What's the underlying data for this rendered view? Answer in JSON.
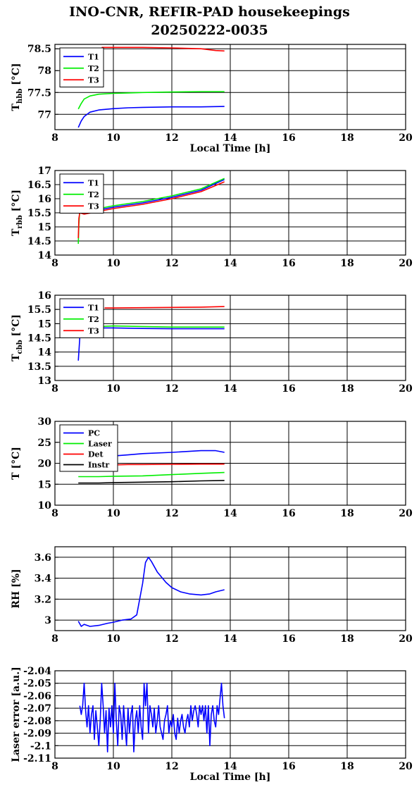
{
  "title_line1": "INO-CNR, REFIR-PAD housekeepings",
  "title_line2": "20250222-0035",
  "colors": {
    "blue": "#0000ff",
    "green": "#00ee00",
    "red": "#ff0000",
    "black": "#000000"
  },
  "chart_data": [
    {
      "type": "line",
      "ylabel": "T_hbb [°C]",
      "xlabel": "Local Time [h]",
      "xlim": [
        8,
        20
      ],
      "xticks": [
        8,
        10,
        12,
        14,
        16,
        18,
        20
      ],
      "ylim": [
        76.65,
        78.6
      ],
      "yticks": [
        77,
        77.5,
        78,
        78.5
      ],
      "ytick_labels": [
        "77",
        "77.5",
        "78",
        "78.5"
      ],
      "grid": true,
      "legend": "top-left",
      "series": [
        {
          "name": "T1",
          "color": "blue",
          "x": [
            8.8,
            8.9,
            9.0,
            9.2,
            9.5,
            10.0,
            10.5,
            11.0,
            12.0,
            13.0,
            13.8
          ],
          "y": [
            76.7,
            76.85,
            76.95,
            77.05,
            77.1,
            77.13,
            77.15,
            77.16,
            77.17,
            77.17,
            77.18
          ]
        },
        {
          "name": "T2",
          "color": "green",
          "x": [
            8.8,
            8.9,
            9.0,
            9.2,
            9.5,
            10.0,
            10.5,
            11.0,
            12.0,
            13.0,
            13.8
          ],
          "y": [
            77.12,
            77.25,
            77.35,
            77.42,
            77.46,
            77.48,
            77.49,
            77.5,
            77.51,
            77.52,
            77.52
          ]
        },
        {
          "name": "T3",
          "color": "red",
          "x": [
            9.6,
            10.0,
            11.0,
            12.0,
            13.0,
            13.5,
            13.8
          ],
          "y": [
            78.53,
            78.53,
            78.53,
            78.52,
            78.5,
            78.46,
            78.45
          ]
        }
      ]
    },
    {
      "type": "line",
      "ylabel": "T_rbb [°C]",
      "xlabel": "",
      "xlim": [
        8,
        20
      ],
      "xticks": [
        8,
        10,
        12,
        14,
        16,
        18,
        20
      ],
      "ylim": [
        14,
        17
      ],
      "yticks": [
        14,
        14.5,
        15,
        15.5,
        16,
        16.5,
        17
      ],
      "ytick_labels": [
        "14",
        "14.5",
        "15",
        "15.5",
        "16",
        "16.5",
        "17"
      ],
      "grid": true,
      "legend": "top-left",
      "series": [
        {
          "name": "T1",
          "color": "blue",
          "x": [
            8.8,
            8.85,
            9.0,
            9.5,
            10.0,
            11.0,
            12.0,
            13.0,
            13.8
          ],
          "y": [
            15.5,
            15.6,
            15.55,
            15.6,
            15.7,
            15.85,
            16.05,
            16.3,
            16.68
          ]
        },
        {
          "name": "T2",
          "color": "green",
          "x": [
            8.8,
            8.82,
            8.85,
            9.0,
            9.5,
            10.0,
            11.0,
            12.0,
            13.0,
            13.8
          ],
          "y": [
            14.4,
            15.1,
            15.6,
            15.6,
            15.65,
            15.75,
            15.9,
            16.1,
            16.35,
            16.72
          ]
        },
        {
          "name": "T3",
          "color": "red",
          "x": [
            8.8,
            8.82,
            8.85,
            9.0,
            9.5,
            10.0,
            11.0,
            12.0,
            13.0,
            13.8
          ],
          "y": [
            14.6,
            15.3,
            15.5,
            15.45,
            15.55,
            15.65,
            15.8,
            16.0,
            16.25,
            16.6
          ]
        }
      ]
    },
    {
      "type": "line",
      "ylabel": "T_cbb [°C]",
      "xlabel": "",
      "xlim": [
        8,
        20
      ],
      "xticks": [
        8,
        10,
        12,
        14,
        16,
        18,
        20
      ],
      "ylim": [
        13,
        16
      ],
      "yticks": [
        13,
        13.5,
        14,
        14.5,
        15,
        15.5,
        16
      ],
      "ytick_labels": [
        "13",
        "13.5",
        "14",
        "14.5",
        "15",
        "15.5",
        "16"
      ],
      "grid": true,
      "legend": "top-left",
      "series": [
        {
          "name": "T1",
          "color": "blue",
          "x": [
            8.8,
            8.85,
            8.9,
            9.0,
            9.5,
            10.0,
            11.0,
            12.0,
            13.0,
            13.8
          ],
          "y": [
            13.7,
            14.5,
            14.8,
            14.85,
            14.85,
            14.85,
            14.83,
            14.82,
            14.82,
            14.82
          ]
        },
        {
          "name": "T2",
          "color": "green",
          "x": [
            9.0,
            9.5,
            10.0,
            11.0,
            12.0,
            13.0,
            13.8
          ],
          "y": [
            14.92,
            14.9,
            14.92,
            14.9,
            14.88,
            14.88,
            14.88
          ]
        },
        {
          "name": "T3",
          "color": "red",
          "x": [
            9.7,
            10.0,
            11.0,
            12.0,
            13.0,
            13.8
          ],
          "y": [
            15.55,
            15.55,
            15.56,
            15.57,
            15.58,
            15.6
          ]
        }
      ]
    },
    {
      "type": "line",
      "ylabel": "T [°C]",
      "xlabel": "",
      "xlim": [
        8,
        20
      ],
      "xticks": [
        8,
        10,
        12,
        14,
        16,
        18,
        20
      ],
      "ylim": [
        10,
        30
      ],
      "yticks": [
        10,
        15,
        20,
        25,
        30
      ],
      "ytick_labels": [
        "10",
        "15",
        "20",
        "25",
        "30"
      ],
      "grid": true,
      "legend": "top-left",
      "series": [
        {
          "name": "PC",
          "color": "blue",
          "x": [
            9.9,
            10.5,
            11.0,
            12.0,
            13.0,
            13.5,
            13.8
          ],
          "y": [
            21.7,
            22.0,
            22.3,
            22.6,
            23.0,
            23.0,
            22.6
          ]
        },
        {
          "name": "Laser",
          "color": "green",
          "x": [
            8.8,
            9.5,
            10.0,
            11.0,
            12.0,
            13.0,
            13.8
          ],
          "y": [
            16.8,
            16.8,
            16.9,
            17.0,
            17.3,
            17.6,
            17.8
          ]
        },
        {
          "name": "Det",
          "color": "red",
          "x": [
            9.9,
            10.5,
            11.0,
            12.0,
            13.0,
            13.8
          ],
          "y": [
            19.6,
            19.7,
            19.7,
            19.75,
            19.8,
            19.8
          ]
        },
        {
          "name": "Instr",
          "color": "black",
          "x": [
            8.8,
            9.5,
            10.0,
            11.0,
            12.0,
            13.0,
            13.8
          ],
          "y": [
            15.3,
            15.3,
            15.4,
            15.5,
            15.6,
            15.8,
            15.9
          ]
        }
      ]
    },
    {
      "type": "line",
      "ylabel": "RH [%]",
      "xlabel": "",
      "xlim": [
        8,
        20
      ],
      "xticks": [
        8,
        10,
        12,
        14,
        16,
        18,
        20
      ],
      "ylim": [
        2.9,
        3.7
      ],
      "yticks": [
        3,
        3.2,
        3.4,
        3.6
      ],
      "ytick_labels": [
        "3",
        "3.2",
        "3.4",
        "3.6"
      ],
      "grid": true,
      "legend": "none",
      "series": [
        {
          "name": "",
          "color": "blue",
          "x": [
            8.8,
            8.9,
            9.0,
            9.2,
            9.5,
            9.8,
            10.0,
            10.3,
            10.6,
            10.8,
            11.0,
            11.1,
            11.2,
            11.3,
            11.5,
            11.8,
            12.0,
            12.3,
            12.6,
            13.0,
            13.3,
            13.5,
            13.8
          ],
          "y": [
            2.99,
            2.94,
            2.96,
            2.94,
            2.95,
            2.97,
            2.98,
            3.0,
            3.01,
            3.05,
            3.35,
            3.55,
            3.6,
            3.56,
            3.46,
            3.36,
            3.31,
            3.27,
            3.25,
            3.24,
            3.25,
            3.27,
            3.29
          ]
        }
      ]
    },
    {
      "type": "line",
      "ylabel": "Laser error [a.u.]",
      "xlabel": "Local Time [h]",
      "xlim": [
        8,
        20
      ],
      "xticks": [
        8,
        10,
        12,
        14,
        16,
        18,
        20
      ],
      "ylim": [
        -2.11,
        -2.04
      ],
      "yticks": [
        -2.11,
        -2.1,
        -2.09,
        -2.08,
        -2.07,
        -2.06,
        -2.05,
        -2.04
      ],
      "ytick_labels": [
        "-2.11",
        "-2.1",
        "-2.09",
        "-2.08",
        "-2.07",
        "-2.06",
        "-2.05",
        "-2.04"
      ],
      "grid": true,
      "legend": "none",
      "series": [
        {
          "name": "",
          "color": "blue",
          "x": [
            8.85,
            8.9,
            8.95,
            9.0,
            9.05,
            9.1,
            9.15,
            9.2,
            9.25,
            9.3,
            9.35,
            9.4,
            9.45,
            9.5,
            9.55,
            9.6,
            9.65,
            9.7,
            9.75,
            9.8,
            9.85,
            9.9,
            9.95,
            10.0,
            10.05,
            10.1,
            10.15,
            10.2,
            10.25,
            10.3,
            10.35,
            10.4,
            10.45,
            10.5,
            10.55,
            10.6,
            10.65,
            10.7,
            10.75,
            10.8,
            10.85,
            10.9,
            10.95,
            11.0,
            11.05,
            11.1,
            11.15,
            11.2,
            11.25,
            11.3,
            11.35,
            11.4,
            11.45,
            11.5,
            11.55,
            11.6,
            11.65,
            11.7,
            11.75,
            11.8,
            11.85,
            11.9,
            11.95,
            12.0,
            12.05,
            12.1,
            12.15,
            12.2,
            12.25,
            12.3,
            12.35,
            12.4,
            12.45,
            12.5,
            12.55,
            12.6,
            12.65,
            12.7,
            12.75,
            12.8,
            12.85,
            12.9,
            12.95,
            13.0,
            13.05,
            13.1,
            13.15,
            13.2,
            13.25,
            13.3,
            13.35,
            13.4,
            13.45,
            13.5,
            13.55,
            13.6,
            13.65,
            13.7,
            13.75,
            13.8
          ],
          "y": [
            -2.068,
            -2.075,
            -2.068,
            -2.05,
            -2.072,
            -2.085,
            -2.068,
            -2.09,
            -2.075,
            -2.068,
            -2.095,
            -2.072,
            -2.085,
            -2.1,
            -2.08,
            -2.05,
            -2.068,
            -2.09,
            -2.072,
            -2.105,
            -2.07,
            -2.085,
            -2.068,
            -2.09,
            -2.05,
            -2.08,
            -2.1,
            -2.068,
            -2.075,
            -2.095,
            -2.068,
            -2.085,
            -2.1,
            -2.07,
            -2.09,
            -2.075,
            -2.068,
            -2.105,
            -2.08,
            -2.072,
            -2.09,
            -2.068,
            -2.085,
            -2.095,
            -2.05,
            -2.068,
            -2.05,
            -2.09,
            -2.068,
            -2.075,
            -2.085,
            -2.07,
            -2.09,
            -2.08,
            -2.068,
            -2.085,
            -2.09,
            -2.095,
            -2.08,
            -2.075,
            -2.068,
            -2.09,
            -2.08,
            -2.085,
            -2.075,
            -2.09,
            -2.095,
            -2.078,
            -2.09,
            -2.08,
            -2.075,
            -2.085,
            -2.09,
            -2.08,
            -2.075,
            -2.085,
            -2.068,
            -2.08,
            -2.072,
            -2.068,
            -2.075,
            -2.085,
            -2.068,
            -2.075,
            -2.068,
            -2.08,
            -2.068,
            -2.09,
            -2.068,
            -2.1,
            -2.075,
            -2.068,
            -2.08,
            -2.085,
            -2.068,
            -2.075,
            -2.062,
            -2.05,
            -2.068,
            -2.078
          ]
        }
      ]
    }
  ]
}
